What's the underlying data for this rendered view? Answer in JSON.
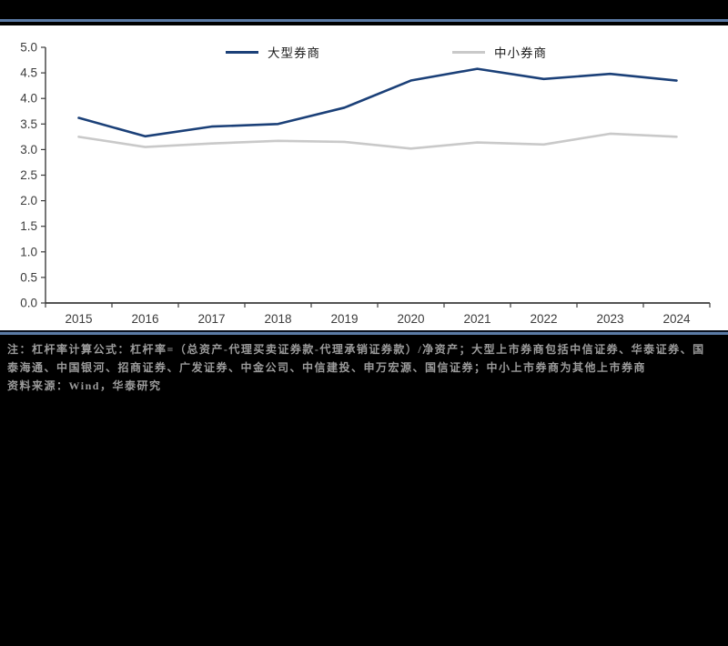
{
  "page": {
    "background_color": "#000000",
    "accent_rule_color": "#5b7ba6",
    "chart_background": "#ffffff"
  },
  "legend": {
    "items": [
      {
        "label": "大型券商",
        "color": "#1b4078"
      },
      {
        "label": "中小券商",
        "color": "#c9c9c9"
      }
    ]
  },
  "notes": {
    "line1": "注：杠杆率计算公式：杠杆率=（总资产-代理买卖证券款-代理承销证券款）/净资产；大型上市券商包括中信证券、华泰证券、国",
    "line2": "泰海通、中国银河、招商证券、广发证券、中金公司、中信建投、申万宏源、国信证券；中小上市券商为其他上市券商",
    "source": "资料来源：Wind，华泰研究"
  },
  "chart_data": {
    "type": "line",
    "title": "",
    "xlabel": "",
    "ylabel": "",
    "categories": [
      "2015",
      "2016",
      "2017",
      "2018",
      "2019",
      "2020",
      "2021",
      "2022",
      "2023",
      "2024"
    ],
    "series": [
      {
        "name": "大型券商",
        "color": "#1b4078",
        "values": [
          3.62,
          3.26,
          3.45,
          3.5,
          3.82,
          4.35,
          4.58,
          4.38,
          4.48,
          4.35
        ]
      },
      {
        "name": "中小券商",
        "color": "#c9c9c9",
        "values": [
          3.25,
          3.05,
          3.12,
          3.17,
          3.15,
          3.02,
          3.14,
          3.1,
          3.31,
          3.25
        ]
      }
    ],
    "ylim": [
      0,
      5
    ],
    "y_tick_step": 0.5,
    "y_tick_labels": [
      "0.0",
      "0.5",
      "1.0",
      "1.5",
      "2.0",
      "2.5",
      "3.0",
      "3.5",
      "4.0",
      "4.5",
      "5.0"
    ],
    "grid": false,
    "legend_position": "top",
    "axis_color": "#3c3c3c",
    "tick_label_color": "#3c3c3c"
  }
}
